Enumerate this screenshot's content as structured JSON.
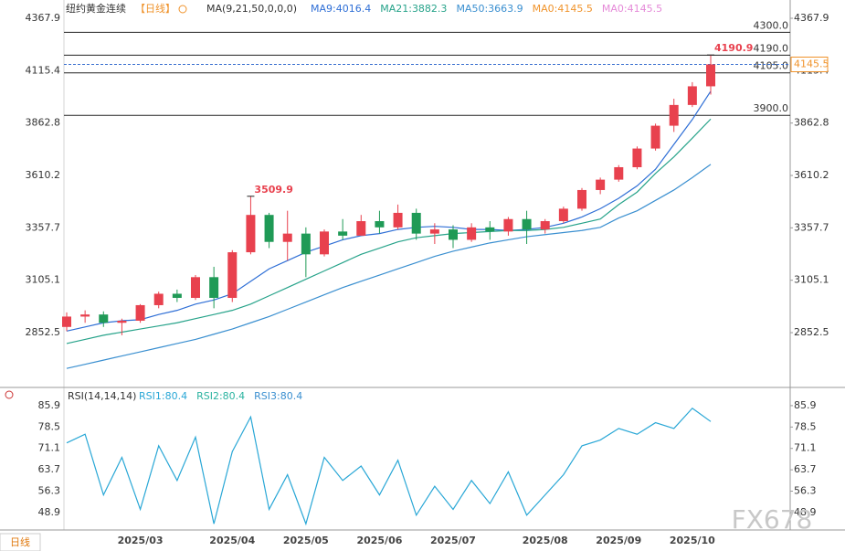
{
  "chart_data": [
    {
      "type": "candlestick",
      "title": "纽约黄金连续",
      "subtitle": "【日线】",
      "indicator": "MA(9,21,50,0,0,0)",
      "categories": [
        null,
        null,
        null,
        null,
        "2025/03",
        null,
        null,
        null,
        null,
        "2025/04",
        null,
        null,
        null,
        "2025/05",
        null,
        null,
        null,
        "2025/06",
        null,
        null,
        null,
        "2025/07",
        null,
        null,
        null,
        null,
        "2025/08",
        null,
        null,
        null,
        "2025/09",
        null,
        null,
        null,
        "2025/10",
        null
      ],
      "open": [
        2880,
        2930,
        2940,
        2900,
        2910,
        2985,
        3040,
        3020,
        3120,
        3020,
        3240,
        3420,
        3290,
        3330,
        3230,
        3340,
        3320,
        3390,
        3360,
        3430,
        3330,
        3350,
        3300,
        3360,
        3340,
        3400,
        3350,
        3390,
        3450,
        3540,
        3590,
        3650,
        3740,
        3850,
        3950,
        4040
      ],
      "high": [
        2950,
        2960,
        2955,
        2920,
        2990,
        3050,
        3060,
        3130,
        3170,
        3250,
        3509.9,
        3430,
        3440,
        3360,
        3350,
        3400,
        3420,
        3440,
        3470,
        3450,
        3380,
        3370,
        3380,
        3390,
        3410,
        3440,
        3400,
        3460,
        3550,
        3600,
        3660,
        3750,
        3860,
        3980,
        4060,
        4190.9
      ],
      "low": [
        2860,
        2900,
        2880,
        2840,
        2900,
        2970,
        3000,
        3010,
        2970,
        3000,
        3230,
        3260,
        3200,
        3120,
        3220,
        3300,
        3320,
        3330,
        3350,
        3300,
        3280,
        3260,
        3290,
        3300,
        3320,
        3280,
        3330,
        3380,
        3440,
        3520,
        3580,
        3640,
        3730,
        3820,
        3940,
        4000
      ],
      "close": [
        2930,
        2940,
        2900,
        2910,
        2985,
        3040,
        3020,
        3120,
        3020,
        3240,
        3420,
        3290,
        3330,
        3230,
        3340,
        3320,
        3390,
        3360,
        3430,
        3330,
        3350,
        3300,
        3360,
        3340,
        3400,
        3350,
        3390,
        3450,
        3540,
        3590,
        3650,
        3740,
        3850,
        3950,
        4040,
        4145.5
      ],
      "up_color": "#e8414e",
      "down_color": "#1f9a56",
      "series": [
        {
          "name": "MA9:4016.4",
          "color": "#2f6fd6",
          "values": [
            2860,
            2880,
            2900,
            2910,
            2915,
            2940,
            2960,
            2990,
            3010,
            3040,
            3100,
            3160,
            3200,
            3240,
            3270,
            3300,
            3320,
            3330,
            3350,
            3360,
            3365,
            3360,
            3350,
            3350,
            3345,
            3350,
            3360,
            3380,
            3410,
            3450,
            3500,
            3560,
            3640,
            3760,
            3880,
            4016.4
          ]
        },
        {
          "name": "MA21:3882.3",
          "color": "#27a38a",
          "values": [
            2800,
            2820,
            2840,
            2855,
            2870,
            2885,
            2900,
            2920,
            2940,
            2960,
            2990,
            3030,
            3070,
            3110,
            3150,
            3190,
            3230,
            3260,
            3290,
            3310,
            3320,
            3330,
            3335,
            3340,
            3345,
            3345,
            3350,
            3360,
            3380,
            3400,
            3470,
            3530,
            3620,
            3700,
            3790,
            3882.3
          ]
        },
        {
          "name": "MA50:3663.9",
          "color": "#3a8fd0",
          "values": [
            2680,
            2700,
            2720,
            2740,
            2760,
            2780,
            2800,
            2820,
            2845,
            2870,
            2900,
            2930,
            2965,
            3000,
            3035,
            3070,
            3100,
            3130,
            3160,
            3190,
            3220,
            3245,
            3265,
            3285,
            3300,
            3315,
            3325,
            3335,
            3345,
            3360,
            3405,
            3440,
            3490,
            3540,
            3600,
            3663.9
          ]
        }
      ],
      "legend_extra": [
        {
          "text": "MA0:4145.5",
          "color": "#f0932b"
        },
        {
          "text": "MA0:4145.5",
          "color": "#e58ad8"
        }
      ],
      "levels": [
        {
          "value": 4300,
          "label": "4300.0"
        },
        {
          "value": 4190,
          "label": "4190.0"
        },
        {
          "value": 4105,
          "label": "4105.0"
        },
        {
          "value": 3900,
          "label": "3900.0"
        }
      ],
      "ylim": [
        2606,
        4434
      ],
      "yticks": [
        4367.9,
        4115.4,
        3862.8,
        3610.2,
        3357.7,
        3105.1,
        2852.5
      ]
    },
    {
      "type": "line",
      "title": "RSI(14,14,14)",
      "series": [
        {
          "name": "RSI1:80.4",
          "color": "#29a7d6",
          "values": [
            73,
            76,
            55,
            68,
            50,
            72,
            60,
            75,
            45,
            70,
            82,
            50,
            62,
            45,
            68,
            60,
            65,
            55,
            67,
            48,
            58,
            50,
            60,
            52,
            63,
            48,
            55,
            62,
            72,
            74,
            78,
            76,
            80,
            78,
            85,
            80.4
          ]
        }
      ],
      "legend_extra": [
        {
          "text": "RSI2:80.4",
          "color": "#2bb3a0"
        },
        {
          "text": "RSI3:80.4",
          "color": "#3a8fd0"
        }
      ],
      "ylim": [
        43.5,
        90.3
      ],
      "yticks": [
        85.9,
        78.5,
        71.1,
        63.7,
        56.3,
        48.9
      ]
    }
  ],
  "footer_tab": "日线",
  "watermark": "FX678"
}
